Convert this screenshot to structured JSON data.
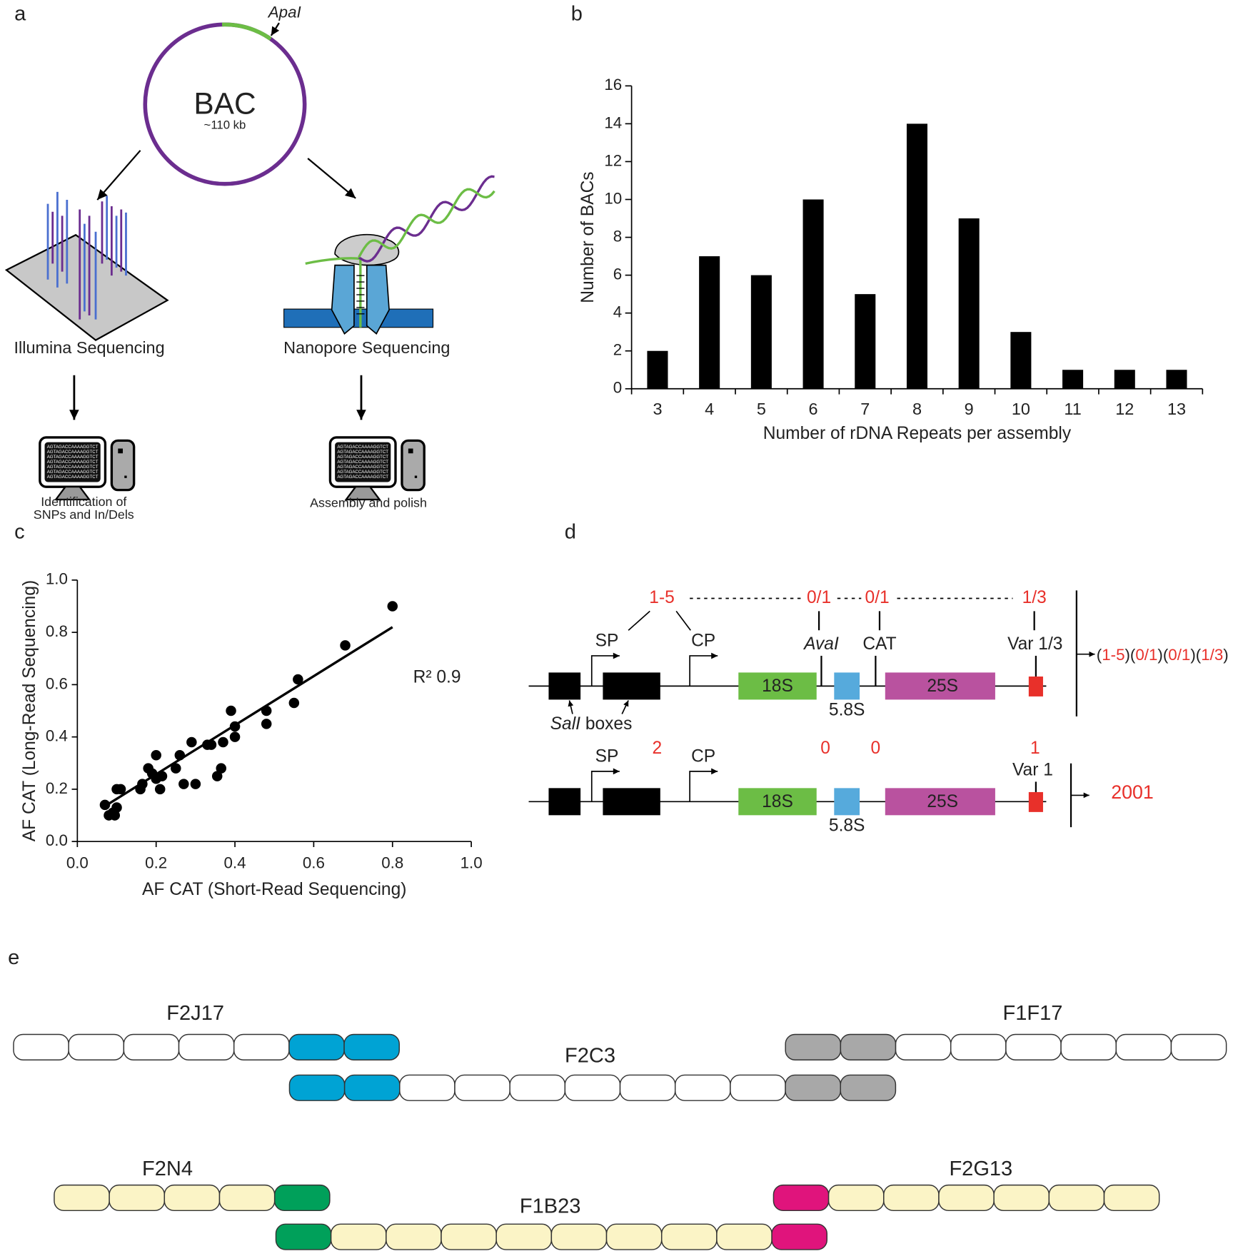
{
  "chart_data": [
    {
      "type": "bar",
      "categories": [
        "3",
        "4",
        "5",
        "6",
        "7",
        "8",
        "9",
        "10",
        "11",
        "12",
        "13"
      ],
      "values": [
        2,
        7,
        6,
        10,
        5,
        14,
        9,
        3,
        1,
        1,
        1
      ],
      "color": "#000000",
      "xlabel": "Number of rDNA Repeats per assembly",
      "ylabel": "Number of BACs",
      "ylim": [
        0,
        16
      ],
      "yticks": [
        0,
        2,
        4,
        6,
        8,
        10,
        12,
        14,
        16
      ]
    },
    {
      "type": "scatter",
      "x": [
        0.07,
        0.08,
        0.09,
        0.095,
        0.1,
        0.1,
        0.11,
        0.16,
        0.165,
        0.18,
        0.19,
        0.2,
        0.2,
        0.21,
        0.215,
        0.25,
        0.26,
        0.27,
        0.29,
        0.3,
        0.33,
        0.34,
        0.355,
        0.365,
        0.37,
        0.39,
        0.4,
        0.4,
        0.48,
        0.48,
        0.55,
        0.56,
        0.68,
        0.8
      ],
      "values": [
        0.14,
        0.1,
        0.11,
        0.1,
        0.13,
        0.2,
        0.2,
        0.2,
        0.22,
        0.28,
        0.26,
        0.33,
        0.24,
        0.2,
        0.25,
        0.28,
        0.33,
        0.22,
        0.38,
        0.22,
        0.37,
        0.37,
        0.25,
        0.28,
        0.38,
        0.5,
        0.4,
        0.44,
        0.5,
        0.45,
        0.53,
        0.62,
        0.75,
        0.9
      ],
      "color": "#000000",
      "fit_line": {
        "x": [
          0.075,
          0.8
        ],
        "values": [
          0.14,
          0.82
        ]
      },
      "annotation": "R² 0.9",
      "xlabel": "AF CAT (Short-Read Sequencing)",
      "ylabel": "AF CAT (Long-Read Sequencing)",
      "xlim": [
        0,
        1
      ],
      "ylim": [
        0,
        1
      ],
      "xticks": [
        {
          "value": 0,
          "label": "0.0"
        },
        0.2,
        0.4,
        0.6,
        0.8,
        {
          "value": 1,
          "label": "1.0"
        }
      ],
      "yticks": [
        {
          "value": 0,
          "label": "0.0"
        },
        0.2,
        0.4,
        0.6,
        0.8,
        {
          "value": 1,
          "label": "1.0"
        }
      ]
    }
  ],
  "diagrams": {
    "panel_labels": [
      "a",
      "b",
      "c",
      "d",
      "e"
    ],
    "panel_a": {
      "enzyme": "ApaI",
      "bac": "BAC",
      "size": "~110 kb",
      "illumina": "Illumina Sequencing",
      "nanopore": "Nanopore Sequencing",
      "left_result": [
        "Identification of",
        "SNPs and In/Dels"
      ],
      "right_result": "Assembly and polish",
      "sequence": "AGTAGACCAAAAGGTCT"
    },
    "panel_d": {
      "top": {
        "counts": [
          "1-5",
          "0/1",
          "0/1",
          "1/3"
        ],
        "sp": "SP",
        "cp": "CP",
        "ava": "AvaI",
        "cat": "CAT",
        "var": "Var 1/3",
        "s18": "18S",
        "s58": "5.8S",
        "s25": "25S",
        "sal": "SalI",
        "boxes": "boxes",
        "pattern": [
          "(",
          "1-5",
          ")(",
          "0/1",
          ")(",
          "0/1",
          ")(",
          "1/3",
          ")"
        ]
      },
      "bottom": {
        "counts": [
          "2",
          "0",
          "0",
          "1"
        ],
        "sp": "SP",
        "cp": "CP",
        "var": "Var 1",
        "s18": "18S",
        "s58": "5.8S",
        "s25": "25S",
        "result": "2001"
      }
    },
    "panel_e": {
      "clones": [
        {
          "name": "F2J17",
          "segments": [
            "#ffffff",
            "#ffffff",
            "#ffffff",
            "#ffffff",
            "#ffffff",
            "#00a3d4",
            "#00a3d4"
          ]
        },
        {
          "name": "F1F17",
          "segments": [
            "#a8a8a8",
            "#a8a8a8",
            "#ffffff",
            "#ffffff",
            "#ffffff",
            "#ffffff",
            "#ffffff",
            "#ffffff"
          ]
        },
        {
          "name": "F2C3",
          "segments": [
            "#00a3d4",
            "#00a3d4",
            "#ffffff",
            "#ffffff",
            "#ffffff",
            "#ffffff",
            "#ffffff",
            "#ffffff",
            "#ffffff",
            "#a8a8a8",
            "#a8a8a8"
          ]
        },
        {
          "name": "F2N4",
          "segments": [
            "#fbf4c6",
            "#fbf4c6",
            "#fbf4c6",
            "#fbf4c6",
            "#00a05a"
          ]
        },
        {
          "name": "F2G13",
          "segments": [
            "#e0147c",
            "#fbf4c6",
            "#fbf4c6",
            "#fbf4c6",
            "#fbf4c6",
            "#fbf4c6",
            "#fbf4c6"
          ]
        },
        {
          "name": "F1B23",
          "segments": [
            "#00a05a",
            "#fbf4c6",
            "#fbf4c6",
            "#fbf4c6",
            "#fbf4c6",
            "#fbf4c6",
            "#fbf4c6",
            "#fbf4c6",
            "#fbf4c6",
            "#e0147c"
          ]
        }
      ]
    }
  }
}
